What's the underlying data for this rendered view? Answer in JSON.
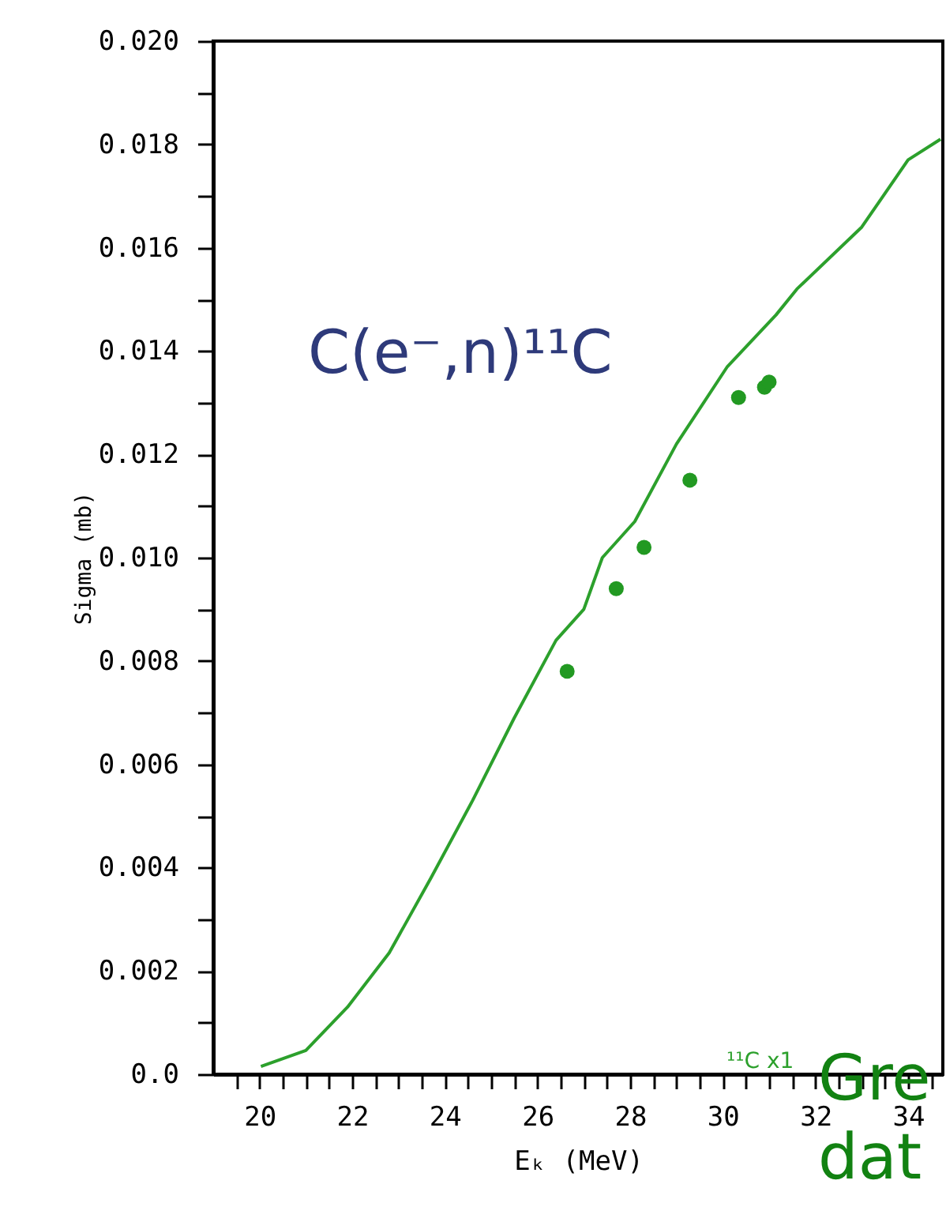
{
  "chart_data": {
    "type": "line",
    "xlabel": "Eₖ (MeV)",
    "ylabel": "Sigma (mb)",
    "annotations": [
      "C(e⁻,n)¹¹C",
      "¹¹C x1",
      "Gre",
      "dat"
    ],
    "xlim": [
      19,
      34.75
    ],
    "xticks": [
      20,
      22,
      24,
      26,
      28,
      30,
      32,
      34,
      {
        "value": 19.5,
        "label": null
      },
      {
        "value": 20.5,
        "label": null
      },
      {
        "value": 21,
        "label": null
      },
      {
        "value": 21.5,
        "label": null
      },
      {
        "value": 22.5,
        "label": null
      },
      {
        "value": 23,
        "label": null
      },
      {
        "value": 23.5,
        "label": null
      },
      {
        "value": 24.5,
        "label": null
      },
      {
        "value": 25,
        "label": null
      },
      {
        "value": 25.5,
        "label": null
      },
      {
        "value": 26.5,
        "label": null
      },
      {
        "value": 27,
        "label": null
      },
      {
        "value": 27.5,
        "label": null
      },
      {
        "value": 28.5,
        "label": null
      },
      {
        "value": 29,
        "label": null
      },
      {
        "value": 29.5,
        "label": null
      },
      {
        "value": 30.5,
        "label": null
      },
      {
        "value": 31,
        "label": null
      },
      {
        "value": 31.5,
        "label": null
      },
      {
        "value": 32.5,
        "label": null
      },
      {
        "value": 33,
        "label": null
      },
      {
        "value": 33.5,
        "label": null
      },
      {
        "value": 34.5,
        "label": null
      }
    ],
    "ylim": [
      0,
      0.02
    ],
    "yticks": [
      {
        "value": 0,
        "label": "0.0"
      },
      0.002,
      0.004,
      0.006,
      0.008,
      {
        "value": 0.01,
        "label": "0.010"
      },
      0.012,
      0.014,
      0.016,
      0.018,
      {
        "value": 0.02,
        "label": "0.020"
      },
      {
        "value": 0.001,
        "label": null
      },
      {
        "value": 0.003,
        "label": null
      },
      {
        "value": 0.005,
        "label": null
      },
      {
        "value": 0.007,
        "label": null
      },
      {
        "value": 0.009,
        "label": null
      },
      {
        "value": 0.011,
        "label": null
      },
      {
        "value": 0.013,
        "label": null
      },
      {
        "value": 0.015,
        "label": null
      },
      {
        "value": 0.017,
        "label": null
      },
      {
        "value": 0.019,
        "label": null
      }
    ],
    "grid": false,
    "series": [
      {
        "color": "#2ca02c",
        "marker": "none",
        "line_style": "solid",
        "x": [
          20.03,
          21.0,
          21.9,
          22.8,
          23.7,
          24.6,
          25.5,
          26.4,
          27.0,
          27.4,
          28.1,
          29.0,
          30.1,
          31.15,
          31.6,
          33.0,
          34.0,
          34.7
        ],
        "values": [
          0.00015,
          0.00046,
          0.0013,
          0.00235,
          0.0038,
          0.0053,
          0.0069,
          0.0084,
          0.009,
          0.01,
          0.0107,
          0.0122,
          0.0137,
          0.0147,
          0.0152,
          0.0164,
          0.0177,
          0.0181
        ]
      },
      {
        "type": "scatter",
        "color": "#229922",
        "marker": "circle",
        "x": [
          26.64,
          27.7,
          28.3,
          29.29,
          30.34,
          30.9,
          31.0
        ],
        "values": [
          0.0078,
          0.0094,
          0.0102,
          0.0115,
          0.0131,
          0.0133,
          0.0134
        ]
      }
    ]
  }
}
